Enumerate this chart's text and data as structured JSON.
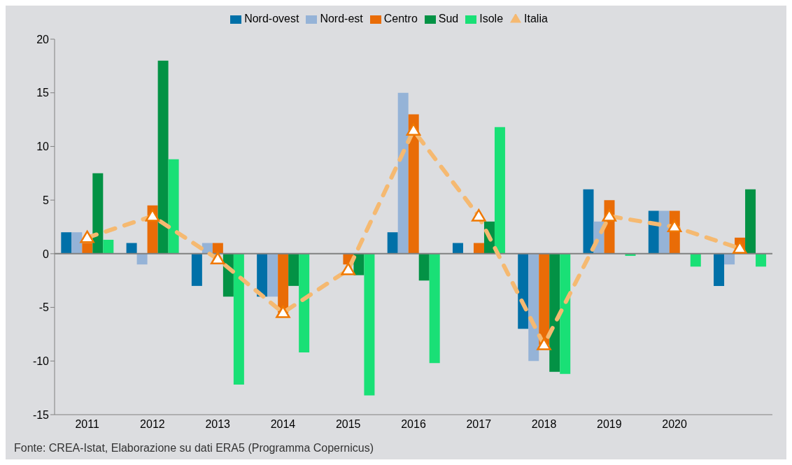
{
  "chart_data": {
    "type": "bar",
    "categories": [
      "2011",
      "2012",
      "2013",
      "2014",
      "2015",
      "2016",
      "2017",
      "2018",
      "2019",
      "2020",
      null
    ],
    "series": [
      {
        "name": "Nord-ovest",
        "color": "#0070a8",
        "values": [
          2,
          1,
          -3,
          -4,
          0,
          2,
          1,
          -7,
          6,
          4,
          -3
        ]
      },
      {
        "name": "Nord-est",
        "color": "#95b3d7",
        "values": [
          2,
          -1,
          1,
          -4,
          0,
          15,
          0,
          -10,
          3,
          4,
          -1
        ]
      },
      {
        "name": "Centro",
        "color": "#e96c07",
        "values": [
          1,
          4.5,
          1,
          -5.5,
          -1,
          13,
          1,
          -8.5,
          5,
          4,
          1.5
        ]
      },
      {
        "name": "Sud",
        "color": "#039245",
        "values": [
          7.5,
          18,
          -4,
          -3,
          -2,
          -2.5,
          3,
          -11,
          0,
          0,
          6
        ]
      },
      {
        "name": "Isole",
        "color": "#19e076",
        "values": [
          1.3,
          8.8,
          -12.2,
          -9.2,
          -13.2,
          -10.2,
          11.8,
          -11.2,
          -0.2,
          -1.2,
          -1.2
        ]
      },
      {
        "name": "Italia",
        "type": "line",
        "color": "#f5b971",
        "marker": "triangle",
        "line_style": "dashed",
        "values": [
          1.5,
          3.5,
          -0.5,
          -5.5,
          -1.5,
          11.5,
          3.5,
          -8.5,
          3.5,
          2.5,
          0.5
        ]
      }
    ],
    "ylim": [
      -15,
      20
    ],
    "yticks": [
      -15,
      -10,
      -5,
      0,
      5,
      10,
      15,
      20
    ],
    "legend": "top",
    "annotations": [
      "Fonte: CREA-Istat, Elaborazione su dati ERA5 (Programma Copernicus)"
    ]
  }
}
